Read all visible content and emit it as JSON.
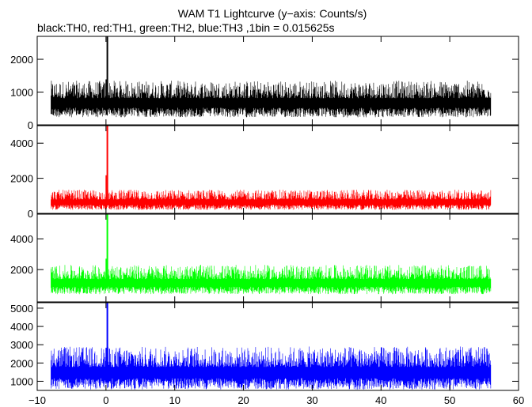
{
  "chart_data": {
    "type": "line",
    "title": "WAM T1 Lightcurve (y−axis: Counts/s)",
    "subtitle": "black:TH0, red:TH1, green:TH2, blue:TH3 ,1bin = 0.015625s",
    "xlim": [
      -10,
      60
    ],
    "x_ticks": [
      -10,
      0,
      10,
      20,
      30,
      40,
      50,
      60
    ],
    "x_tick_labels": [
      "−10",
      "0",
      "10",
      "20",
      "30",
      "40",
      "50",
      "60"
    ],
    "x_data_range": [
      -8,
      56
    ],
    "grid": false,
    "panels": [
      {
        "series": "TH0",
        "color": "#000000",
        "ylim": [
          0,
          2700
        ],
        "y_ticks": [
          0,
          1000,
          2000
        ],
        "y_tick_labels": [
          "0",
          "1000",
          "2000"
        ],
        "baseline": 680,
        "noise_low": 230,
        "noise_high": 1350,
        "peak": {
          "x": 0.2,
          "y": 2700
        }
      },
      {
        "series": "TH1",
        "color": "#ff0000",
        "ylim": [
          0,
          5000
        ],
        "y_ticks": [
          0,
          2000,
          4000
        ],
        "y_tick_labels": [
          "0",
          "2000",
          "4000"
        ],
        "baseline": 650,
        "noise_low": 200,
        "noise_high": 1350,
        "peak": {
          "x": 0.2,
          "y": 5000
        }
      },
      {
        "series": "TH2",
        "color": "#00ff00",
        "ylim": [
          -100,
          5600
        ],
        "y_ticks": [
          2000,
          4000
        ],
        "y_tick_labels": [
          "2000",
          "4000"
        ],
        "baseline": 1150,
        "noise_low": 400,
        "noise_high": 2300,
        "peak": {
          "x": 0.2,
          "y": 5600
        }
      },
      {
        "series": "TH3",
        "color": "#0000ff",
        "ylim": [
          500,
          5300
        ],
        "y_ticks": [
          1000,
          2000,
          3000,
          4000,
          5000
        ],
        "y_tick_labels": [
          "1000",
          "2000",
          "3000",
          "4000",
          "5000"
        ],
        "baseline": 1500,
        "noise_low": 550,
        "noise_high": 2900,
        "peak": {
          "x": 0.2,
          "y": 5300
        }
      }
    ]
  }
}
